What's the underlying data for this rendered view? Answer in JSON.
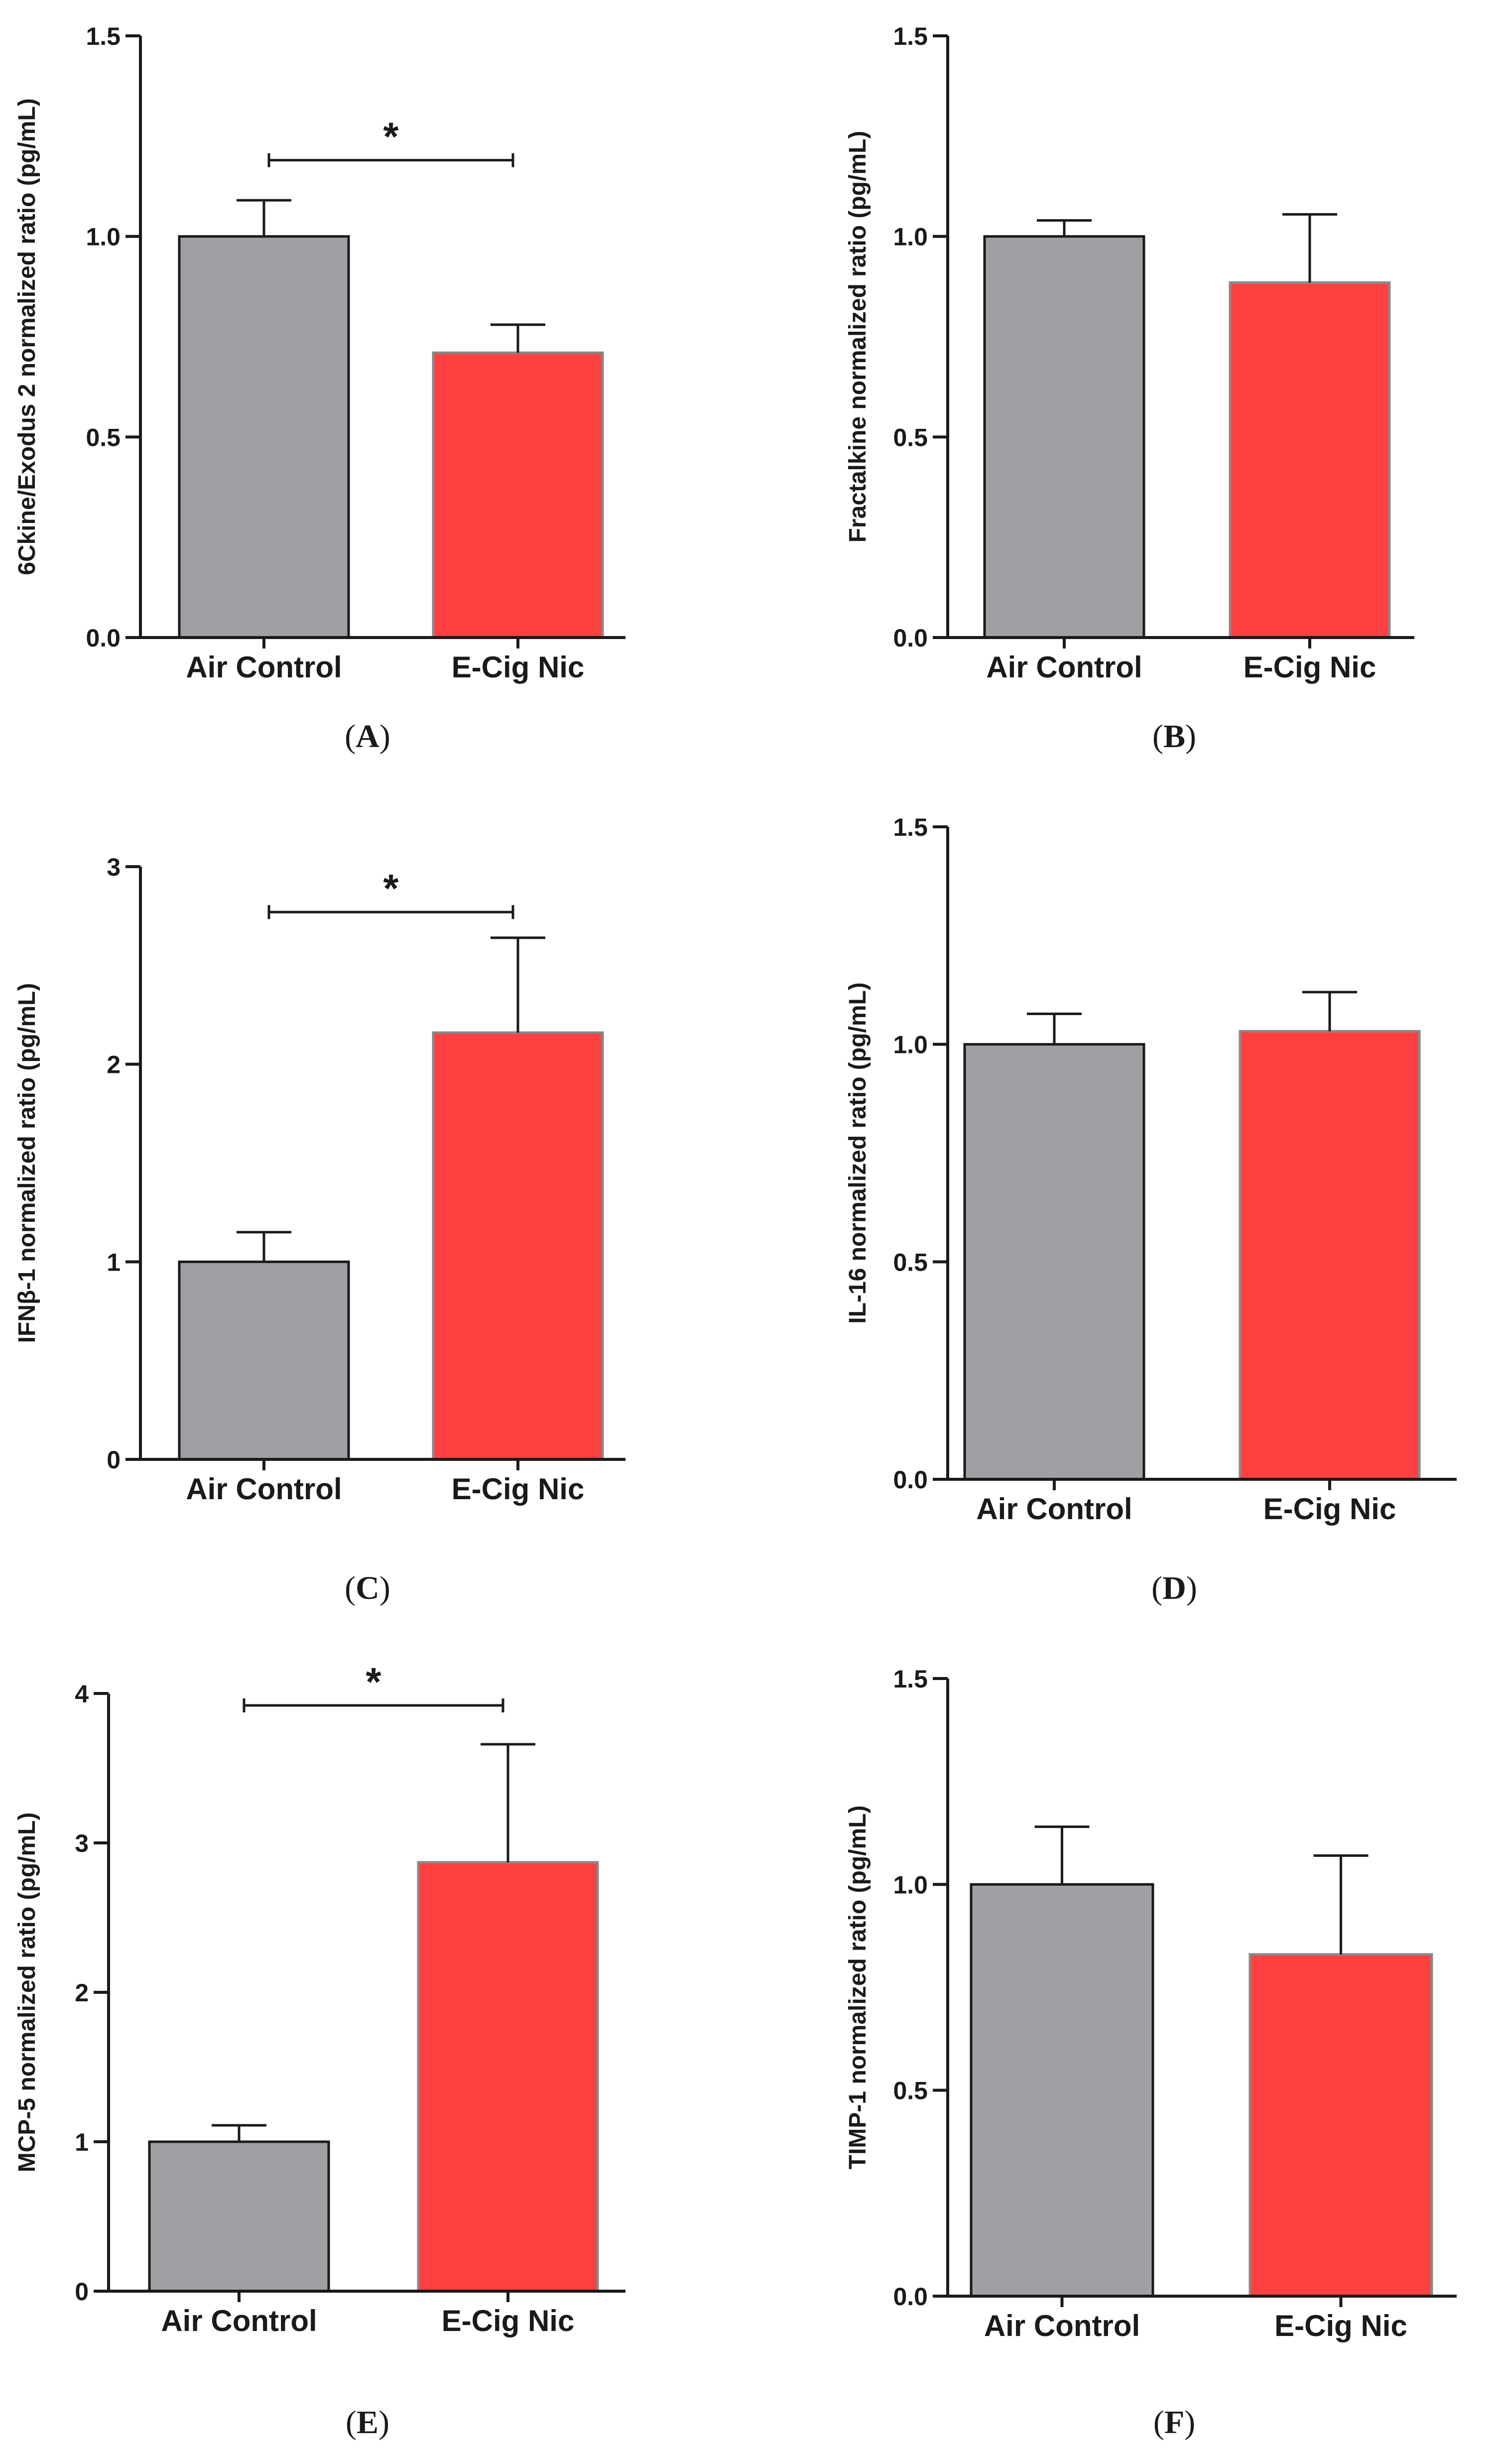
{
  "colors": {
    "control": "#a0a0a4",
    "treatment": "#ff4040",
    "ink": "#1a1a1a"
  },
  "chart_data": [
    {
      "panel": "(A)",
      "caption_paren_open": "(",
      "caption_letter": "A",
      "caption_paren_close": ")",
      "type": "bar",
      "ylabel": "6Ckine/Exodus 2 normalized ratio (pg/mL)",
      "categories": [
        "Air Control",
        "E-Cig Nic"
      ],
      "values": [
        1.0,
        0.71
      ],
      "errors": [
        0.09,
        0.07
      ],
      "ylim": [
        0,
        1.5
      ],
      "yticks": [
        0.0,
        0.5,
        1.0,
        1.5
      ],
      "ytick_labels": [
        "0.0",
        "0.5",
        "1.0",
        "1.5"
      ],
      "significance": "*",
      "significance_at": 1.19
    },
    {
      "panel": "(B)",
      "caption_paren_open": "(",
      "caption_letter": "B",
      "caption_paren_close": ")",
      "type": "bar",
      "ylabel": "Fractalkine normalized ratio (pg/mL)",
      "categories": [
        "Air Control",
        "E-Cig Nic"
      ],
      "values": [
        1.0,
        0.885
      ],
      "errors": [
        0.04,
        0.17
      ],
      "ylim": [
        0,
        1.5
      ],
      "yticks": [
        0.0,
        0.5,
        1.0,
        1.5
      ],
      "ytick_labels": [
        "0.0",
        "0.5",
        "1.0",
        "1.5"
      ],
      "significance": "",
      "significance_at": null
    },
    {
      "panel": "(C)",
      "caption_paren_open": "(",
      "caption_letter": "C",
      "caption_paren_close": ")",
      "type": "bar",
      "ylabel": "IFNβ-1 normalized ratio (pg/mL)",
      "categories": [
        "Air Control",
        "E-Cig Nic"
      ],
      "values": [
        1.0,
        2.16
      ],
      "errors": [
        0.15,
        0.48
      ],
      "ylim": [
        0,
        3
      ],
      "yticks": [
        0,
        1,
        2,
        3
      ],
      "ytick_labels": [
        "0",
        "1",
        "2",
        "3"
      ],
      "significance": "*",
      "significance_at": 2.77
    },
    {
      "panel": "(D)",
      "caption_paren_open": "(",
      "caption_letter": "D",
      "caption_paren_close": ")",
      "type": "bar",
      "ylabel": "IL-16 normalized ratio (pg/mL)",
      "categories": [
        "Air Control",
        "E-Cig Nic"
      ],
      "values": [
        1.0,
        1.03
      ],
      "errors": [
        0.07,
        0.09
      ],
      "ylim": [
        0,
        1.5
      ],
      "yticks": [
        0.0,
        0.5,
        1.0,
        1.5
      ],
      "ytick_labels": [
        "0.0",
        "0.5",
        "1.0",
        "1.5"
      ],
      "significance": "",
      "significance_at": null
    },
    {
      "panel": "(E)",
      "caption_paren_open": "(",
      "caption_letter": "E",
      "caption_paren_close": ")",
      "type": "bar",
      "ylabel": "MCP-5 normalized ratio (pg/mL)",
      "categories": [
        "Air Control",
        "E-Cig Nic"
      ],
      "values": [
        1.0,
        2.87
      ],
      "errors": [
        0.11,
        0.79
      ],
      "ylim": [
        0,
        4
      ],
      "yticks": [
        0,
        1,
        2,
        3,
        4
      ],
      "ytick_labels": [
        "0",
        "1",
        "2",
        "3",
        "4"
      ],
      "significance": "*",
      "significance_at": 3.92
    },
    {
      "panel": "(F)",
      "caption_paren_open": "(",
      "caption_letter": "F",
      "caption_paren_close": ")",
      "type": "bar",
      "ylabel": "TIMP-1 normalized ratio (pg/mL)",
      "categories": [
        "Air Control",
        "E-Cig Nic"
      ],
      "values": [
        1.0,
        0.83
      ],
      "errors": [
        0.14,
        0.24
      ],
      "ylim": [
        0,
        1.5
      ],
      "yticks": [
        0.0,
        0.5,
        1.0,
        1.5
      ],
      "ytick_labels": [
        "0.0",
        "0.5",
        "1.0",
        "1.5"
      ],
      "significance": "",
      "significance_at": null
    }
  ]
}
